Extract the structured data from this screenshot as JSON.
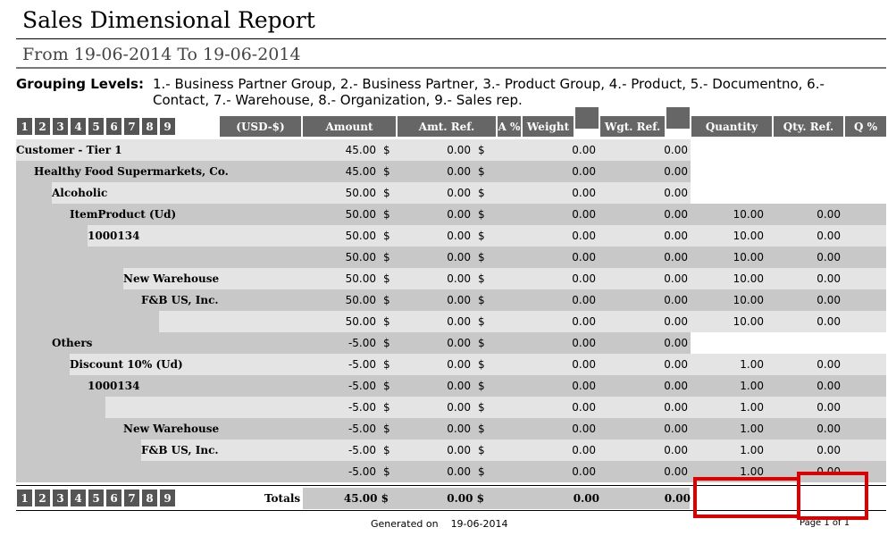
{
  "report": {
    "title": "Sales Dimensional Report",
    "subtitle": "From 19-06-2014 To 19-06-2014",
    "grouping_label": "Grouping Levels:",
    "grouping_text": "1.- Business Partner Group, 2.- Business Partner, 3.- Product Group, 4.- Product, 5.- Documentno, 6.- Contact, 7.- Warehouse, 8.- Organization, 9.- Sales rep."
  },
  "levels": [
    "1",
    "2",
    "3",
    "4",
    "5",
    "6",
    "7",
    "8",
    "9"
  ],
  "headers": {
    "currency": "(USD-$)",
    "amount": "Amount",
    "amt_ref": "Amt. Ref.",
    "a_pct": "A %",
    "weight": "Weight",
    "wgt_ref": "Wgt. Ref.",
    "quantity": "Quantity",
    "qty_ref": "Qty. Ref.",
    "q_pct": "Q %"
  },
  "currency_symbol": "$",
  "rows": [
    {
      "label": "Customer - Tier 1",
      "level": 0,
      "amount": "45.00",
      "amt_ref": "0.00",
      "weight": "0.00",
      "wgt_ref": "0.00",
      "quantity": "",
      "qty_ref": ""
    },
    {
      "label": "Healthy Food Supermarkets, Co.",
      "level": 1,
      "amount": "45.00",
      "amt_ref": "0.00",
      "weight": "0.00",
      "wgt_ref": "0.00",
      "quantity": "",
      "qty_ref": ""
    },
    {
      "label": "Alcoholic",
      "level": 2,
      "amount": "50.00",
      "amt_ref": "0.00",
      "weight": "0.00",
      "wgt_ref": "0.00",
      "quantity": "",
      "qty_ref": ""
    },
    {
      "label": "ItemProduct (Ud)",
      "level": 3,
      "amount": "50.00",
      "amt_ref": "0.00",
      "weight": "0.00",
      "wgt_ref": "0.00",
      "quantity": "10.00",
      "qty_ref": "0.00"
    },
    {
      "label": "1000134",
      "level": 4,
      "amount": "50.00",
      "amt_ref": "0.00",
      "weight": "0.00",
      "wgt_ref": "0.00",
      "quantity": "10.00",
      "qty_ref": "0.00"
    },
    {
      "label": "",
      "level": 5,
      "amount": "50.00",
      "amt_ref": "0.00",
      "weight": "0.00",
      "wgt_ref": "0.00",
      "quantity": "10.00",
      "qty_ref": "0.00"
    },
    {
      "label": "New Warehouse",
      "level": 6,
      "amount": "50.00",
      "amt_ref": "0.00",
      "weight": "0.00",
      "wgt_ref": "0.00",
      "quantity": "10.00",
      "qty_ref": "0.00"
    },
    {
      "label": "F&B US, Inc.",
      "level": 7,
      "amount": "50.00",
      "amt_ref": "0.00",
      "weight": "0.00",
      "wgt_ref": "0.00",
      "quantity": "10.00",
      "qty_ref": "0.00"
    },
    {
      "label": "",
      "level": 8,
      "amount": "50.00",
      "amt_ref": "0.00",
      "weight": "0.00",
      "wgt_ref": "0.00",
      "quantity": "10.00",
      "qty_ref": "0.00"
    },
    {
      "label": "Others",
      "level": 2,
      "amount": "-5.00",
      "amt_ref": "0.00",
      "weight": "0.00",
      "wgt_ref": "0.00",
      "quantity": "",
      "qty_ref": ""
    },
    {
      "label": "Discount 10% (Ud)",
      "level": 3,
      "amount": "-5.00",
      "amt_ref": "0.00",
      "weight": "0.00",
      "wgt_ref": "0.00",
      "quantity": "1.00",
      "qty_ref": "0.00"
    },
    {
      "label": "1000134",
      "level": 4,
      "amount": "-5.00",
      "amt_ref": "0.00",
      "weight": "0.00",
      "wgt_ref": "0.00",
      "quantity": "1.00",
      "qty_ref": "0.00"
    },
    {
      "label": "",
      "level": 5,
      "amount": "-5.00",
      "amt_ref": "0.00",
      "weight": "0.00",
      "wgt_ref": "0.00",
      "quantity": "1.00",
      "qty_ref": "0.00"
    },
    {
      "label": "New Warehouse",
      "level": 6,
      "amount": "-5.00",
      "amt_ref": "0.00",
      "weight": "0.00",
      "wgt_ref": "0.00",
      "quantity": "1.00",
      "qty_ref": "0.00"
    },
    {
      "label": "F&B US, Inc.",
      "level": 7,
      "amount": "-5.00",
      "amt_ref": "0.00",
      "weight": "0.00",
      "wgt_ref": "0.00",
      "quantity": "1.00",
      "qty_ref": "0.00"
    },
    {
      "label": "",
      "level": 8,
      "amount": "-5.00",
      "amt_ref": "0.00",
      "weight": "0.00",
      "wgt_ref": "0.00",
      "quantity": "1.00",
      "qty_ref": "0.00"
    }
  ],
  "totals": {
    "label": "Totals",
    "amount": "45.00 $",
    "amt_ref": "0.00 $",
    "weight": "0.00",
    "wgt_ref": "0.00"
  },
  "footer": {
    "generated_label": "Generated on",
    "generated_date": "19-06-2014",
    "page": "Page 1 of 1"
  },
  "highlight_color": "#dd0000"
}
